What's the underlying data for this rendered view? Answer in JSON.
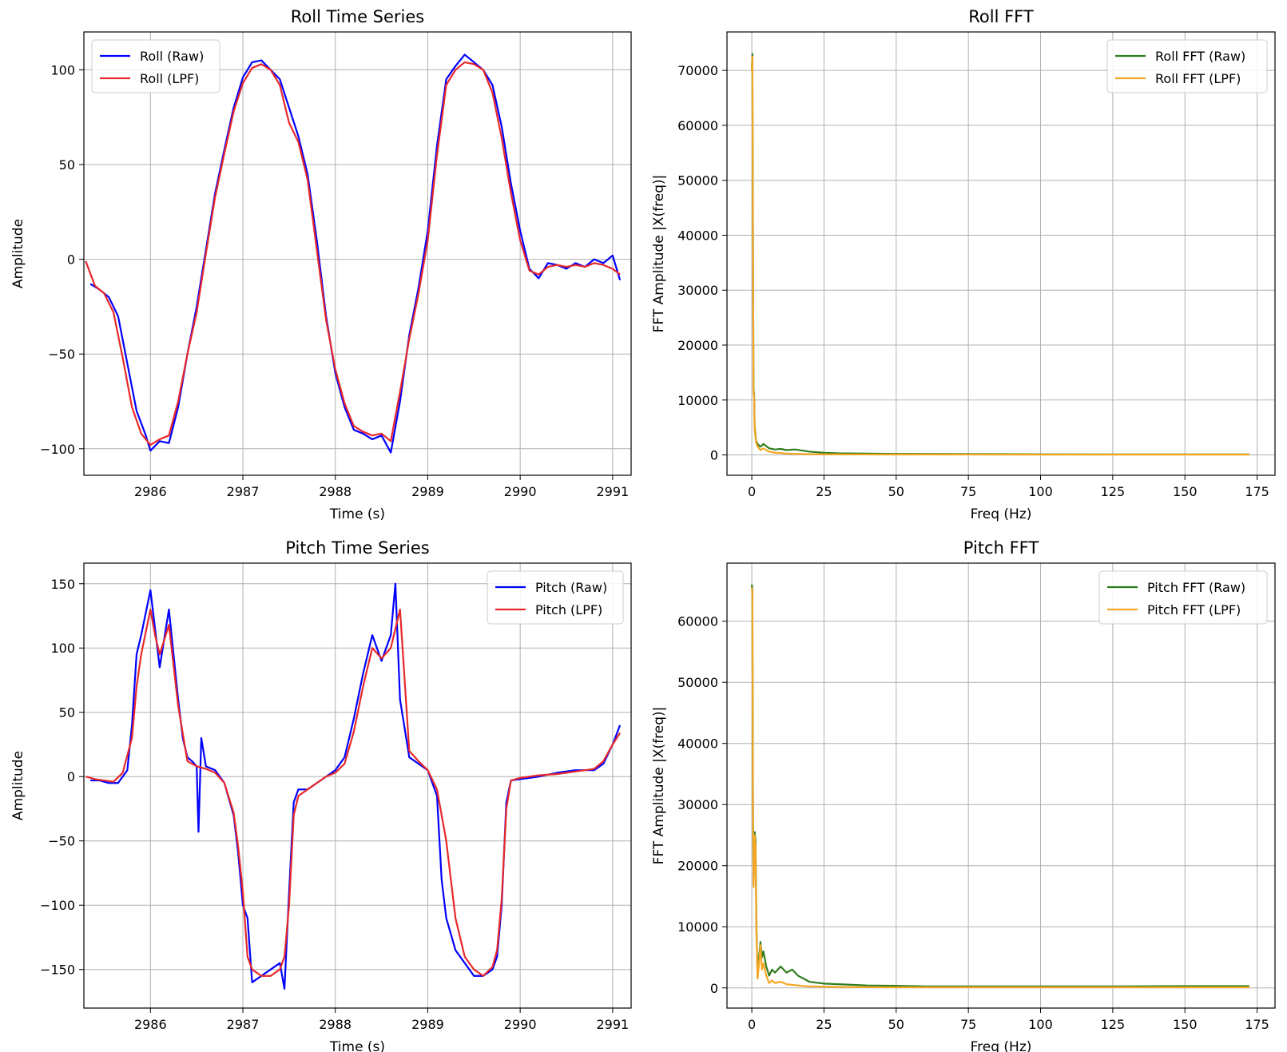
{
  "chart_data": [
    {
      "id": "roll_ts",
      "type": "line",
      "title": "Roll Time Series",
      "xlabel": "Time (s)",
      "ylabel": "Amplitude",
      "xlim": [
        2985.28,
        2991.2
      ],
      "ylim": [
        -114,
        120
      ],
      "xticks": [
        2986,
        2987,
        2988,
        2989,
        2990,
        2991
      ],
      "yticks": [
        -100,
        -50,
        0,
        50,
        100
      ],
      "grid": true,
      "legend": "upper left",
      "series": [
        {
          "name": "Roll (Raw)",
          "color": "#0000ff",
          "x": [
            2985.35,
            2985.45,
            2985.55,
            2985.65,
            2985.75,
            2985.85,
            2985.95,
            2986.0,
            2986.1,
            2986.2,
            2986.3,
            2986.4,
            2986.5,
            2986.6,
            2986.7,
            2986.8,
            2986.9,
            2987.0,
            2987.1,
            2987.2,
            2987.3,
            2987.4,
            2987.5,
            2987.6,
            2987.7,
            2987.8,
            2987.9,
            2988.0,
            2988.1,
            2988.2,
            2988.3,
            2988.4,
            2988.5,
            2988.6,
            2988.7,
            2988.8,
            2988.9,
            2989.0,
            2989.1,
            2989.2,
            2989.3,
            2989.4,
            2989.5,
            2989.6,
            2989.7,
            2989.8,
            2989.9,
            2990.0,
            2990.1,
            2990.2,
            2990.3,
            2990.4,
            2990.5,
            2990.6,
            2990.7,
            2990.8,
            2990.9,
            2991.0,
            2991.08
          ],
          "y": [
            -13,
            -16,
            -20,
            -30,
            -55,
            -80,
            -93,
            -101,
            -96,
            -97,
            -78,
            -50,
            -25,
            5,
            35,
            58,
            80,
            96,
            104,
            105,
            100,
            95,
            80,
            65,
            45,
            10,
            -30,
            -60,
            -78,
            -90,
            -92,
            -95,
            -93,
            -102,
            -75,
            -40,
            -15,
            15,
            60,
            95,
            102,
            108,
            104,
            100,
            92,
            70,
            40,
            15,
            -5,
            -10,
            -2,
            -3,
            -5,
            -2,
            -4,
            0,
            -2,
            2,
            -11
          ]
        },
        {
          "name": "Roll (LPF)",
          "color": "#e8282a",
          "x": [
            2985.3,
            2985.4,
            2985.5,
            2985.6,
            2985.7,
            2985.8,
            2985.9,
            2986.0,
            2986.1,
            2986.2,
            2986.3,
            2986.4,
            2986.5,
            2986.6,
            2986.7,
            2986.8,
            2986.9,
            2987.0,
            2987.1,
            2987.2,
            2987.3,
            2987.4,
            2987.5,
            2987.6,
            2987.7,
            2987.8,
            2987.9,
            2988.0,
            2988.1,
            2988.2,
            2988.3,
            2988.4,
            2988.5,
            2988.6,
            2988.7,
            2988.8,
            2988.9,
            2989.0,
            2989.1,
            2989.2,
            2989.3,
            2989.4,
            2989.5,
            2989.6,
            2989.7,
            2989.8,
            2989.9,
            2990.0,
            2990.1,
            2990.2,
            2990.3,
            2990.4,
            2990.5,
            2990.6,
            2990.7,
            2990.8,
            2990.9,
            2991.0,
            2991.08
          ],
          "y": [
            -1,
            -14,
            -18,
            -28,
            -52,
            -78,
            -92,
            -98,
            -95,
            -93,
            -75,
            -50,
            -28,
            3,
            33,
            56,
            78,
            93,
            101,
            103,
            100,
            92,
            72,
            62,
            42,
            5,
            -32,
            -58,
            -76,
            -88,
            -91,
            -93,
            -92,
            -96,
            -70,
            -42,
            -18,
            10,
            55,
            92,
            100,
            104,
            103,
            100,
            88,
            64,
            35,
            10,
            -6,
            -8,
            -4,
            -3,
            -4,
            -3,
            -4,
            -2,
            -3,
            -5,
            -8
          ]
        }
      ]
    },
    {
      "id": "roll_fft",
      "type": "line",
      "title": "Roll FFT",
      "xlabel": "Freq (Hz)",
      "ylabel": "FFT Amplitude |X(freq)|",
      "xlim": [
        -8.6,
        181.2
      ],
      "ylim": [
        -3700,
        77000
      ],
      "xticks": [
        0,
        25,
        50,
        75,
        100,
        125,
        150,
        175
      ],
      "yticks": [
        0,
        10000,
        20000,
        30000,
        40000,
        50000,
        60000,
        70000
      ],
      "grid": true,
      "legend": "upper right",
      "series": [
        {
          "name": "Roll FFT (Raw)",
          "color": "#2e7d1c",
          "x": [
            0,
            0.2,
            0.4,
            0.6,
            0.8,
            1.0,
            1.5,
            2,
            3,
            4,
            6,
            8,
            10,
            12,
            15,
            20,
            25,
            30,
            40,
            50,
            75,
            100,
            125,
            150,
            172.3
          ],
          "y": [
            70000,
            73000,
            40000,
            12000,
            11000,
            5000,
            2500,
            2000,
            1500,
            2000,
            1200,
            1000,
            1100,
            900,
            1000,
            600,
            400,
            300,
            250,
            200,
            150,
            120,
            110,
            100,
            100
          ]
        },
        {
          "name": "Roll FFT (LPF)",
          "color": "#f5a623",
          "x": [
            0,
            0.2,
            0.4,
            0.6,
            0.8,
            1.0,
            1.5,
            2,
            3,
            4,
            6,
            8,
            10,
            12,
            15,
            20,
            25,
            30,
            40,
            50,
            75,
            100,
            125,
            150,
            172.3
          ],
          "y": [
            70000,
            72500,
            39000,
            11500,
            10500,
            4500,
            2200,
            1500,
            900,
            1200,
            600,
            400,
            350,
            250,
            200,
            150,
            120,
            100,
            90,
            80,
            70,
            60,
            60,
            60,
            60
          ]
        }
      ]
    },
    {
      "id": "pitch_ts",
      "type": "line",
      "title": "Pitch Time Series",
      "xlabel": "Time (s)",
      "ylabel": "Amplitude",
      "xlim": [
        2985.28,
        2991.2
      ],
      "ylim": [
        -180,
        166
      ],
      "xticks": [
        2986,
        2987,
        2988,
        2989,
        2990,
        2991
      ],
      "yticks": [
        -150,
        -100,
        -50,
        0,
        50,
        100,
        150
      ],
      "grid": true,
      "legend": "upper right",
      "series": [
        {
          "name": "Pitch (Raw)",
          "color": "#0000ff",
          "x": [
            2985.35,
            2985.45,
            2985.55,
            2985.65,
            2985.75,
            2985.8,
            2985.85,
            2985.9,
            2986.0,
            2986.05,
            2986.1,
            2986.2,
            2986.3,
            2986.35,
            2986.4,
            2986.45,
            2986.5,
            2986.52,
            2986.55,
            2986.6,
            2986.7,
            2986.8,
            2986.9,
            2986.95,
            2987.0,
            2987.05,
            2987.1,
            2987.2,
            2987.3,
            2987.4,
            2987.45,
            2987.5,
            2987.55,
            2987.6,
            2987.7,
            2987.8,
            2987.9,
            2988.0,
            2988.1,
            2988.2,
            2988.3,
            2988.4,
            2988.5,
            2988.6,
            2988.65,
            2988.7,
            2988.8,
            2988.9,
            2989.0,
            2989.1,
            2989.15,
            2989.2,
            2989.3,
            2989.4,
            2989.5,
            2989.6,
            2989.7,
            2989.75,
            2989.8,
            2989.85,
            2989.9,
            2990.0,
            2990.2,
            2990.4,
            2990.6,
            2990.8,
            2990.9,
            2991.0,
            2991.08
          ],
          "y": [
            -3,
            -3,
            -5,
            -5,
            5,
            40,
            95,
            110,
            145,
            115,
            85,
            130,
            60,
            30,
            15,
            12,
            8,
            -43,
            30,
            8,
            5,
            -5,
            -30,
            -60,
            -100,
            -110,
            -160,
            -155,
            -150,
            -145,
            -165,
            -90,
            -20,
            -10,
            -10,
            -5,
            0,
            5,
            15,
            45,
            80,
            110,
            90,
            110,
            150,
            60,
            15,
            10,
            5,
            -15,
            -80,
            -110,
            -135,
            -145,
            -155,
            -155,
            -150,
            -140,
            -100,
            -20,
            -3,
            -2,
            0,
            3,
            5,
            5,
            10,
            25,
            40
          ]
        },
        {
          "name": "Pitch (LPF)",
          "color": "#e8282a",
          "x": [
            2985.3,
            2985.4,
            2985.5,
            2985.6,
            2985.7,
            2985.8,
            2985.85,
            2985.9,
            2986.0,
            2986.05,
            2986.1,
            2986.2,
            2986.3,
            2986.4,
            2986.5,
            2986.6,
            2986.7,
            2986.8,
            2986.9,
            2986.95,
            2987.0,
            2987.05,
            2987.1,
            2987.2,
            2987.3,
            2987.4,
            2987.45,
            2987.5,
            2987.55,
            2987.6,
            2987.7,
            2987.8,
            2987.9,
            2988.0,
            2988.1,
            2988.2,
            2988.3,
            2988.4,
            2988.5,
            2988.6,
            2988.7,
            2988.8,
            2988.9,
            2989.0,
            2989.1,
            2989.2,
            2989.3,
            2989.4,
            2989.5,
            2989.6,
            2989.7,
            2989.75,
            2989.8,
            2989.85,
            2989.9,
            2990.0,
            2990.2,
            2990.4,
            2990.6,
            2990.8,
            2990.9,
            2991.0,
            2991.08
          ],
          "y": [
            0,
            -2,
            -3,
            -4,
            3,
            30,
            70,
            95,
            130,
            110,
            95,
            118,
            55,
            12,
            8,
            6,
            3,
            -5,
            -28,
            -55,
            -90,
            -140,
            -150,
            -155,
            -155,
            -150,
            -140,
            -100,
            -30,
            -15,
            -10,
            -5,
            0,
            3,
            10,
            35,
            70,
            100,
            92,
            100,
            130,
            20,
            12,
            5,
            -10,
            -50,
            -110,
            -140,
            -150,
            -155,
            -148,
            -135,
            -95,
            -25,
            -3,
            -1,
            1,
            2,
            4,
            6,
            12,
            25,
            34
          ]
        }
      ]
    },
    {
      "id": "pitch_fft",
      "type": "line",
      "title": "Pitch FFT",
      "xlabel": "Freq (Hz)",
      "ylabel": "FFT Amplitude |X(freq)|",
      "xlim": [
        -8.6,
        181.2
      ],
      "ylim": [
        -3300,
        69500
      ],
      "xticks": [
        0,
        25,
        50,
        75,
        100,
        125,
        150,
        175
      ],
      "yticks": [
        0,
        10000,
        20000,
        30000,
        40000,
        50000,
        60000
      ],
      "grid": true,
      "legend": "upper right",
      "series": [
        {
          "name": "Pitch FFT (Raw)",
          "color": "#2e7d1c",
          "x": [
            0,
            0.2,
            0.4,
            0.6,
            0.8,
            1.0,
            1.3,
            1.6,
            2.0,
            2.5,
            3,
            3.5,
            4,
            5,
            6,
            7,
            8,
            10,
            12,
            14,
            16,
            18,
            20,
            25,
            30,
            40,
            50,
            60,
            75,
            100,
            125,
            150,
            172.3
          ],
          "y": [
            66000,
            65000,
            30000,
            17000,
            21000,
            25500,
            24000,
            10000,
            2000,
            5000,
            7500,
            5000,
            6000,
            3500,
            2000,
            3000,
            2500,
            3500,
            2500,
            3000,
            2000,
            1500,
            1000,
            700,
            600,
            400,
            350,
            250,
            250,
            250,
            250,
            300,
            300
          ]
        },
        {
          "name": "Pitch FFT (LPF)",
          "color": "#f5a623",
          "x": [
            0,
            0.2,
            0.4,
            0.6,
            0.8,
            1.0,
            1.3,
            1.6,
            2.0,
            2.5,
            3,
            3.5,
            4,
            5,
            6,
            7,
            8,
            10,
            12,
            14,
            16,
            18,
            20,
            25,
            30,
            40,
            50,
            60,
            75,
            100,
            125,
            150,
            172.3
          ],
          "y": [
            65500,
            64500,
            29000,
            16500,
            20000,
            25000,
            23000,
            9000,
            1500,
            4000,
            7000,
            3000,
            4000,
            2000,
            800,
            1200,
            800,
            1000,
            600,
            500,
            400,
            300,
            250,
            200,
            150,
            120,
            100,
            100,
            100,
            100,
            100,
            100,
            100
          ]
        }
      ]
    }
  ]
}
